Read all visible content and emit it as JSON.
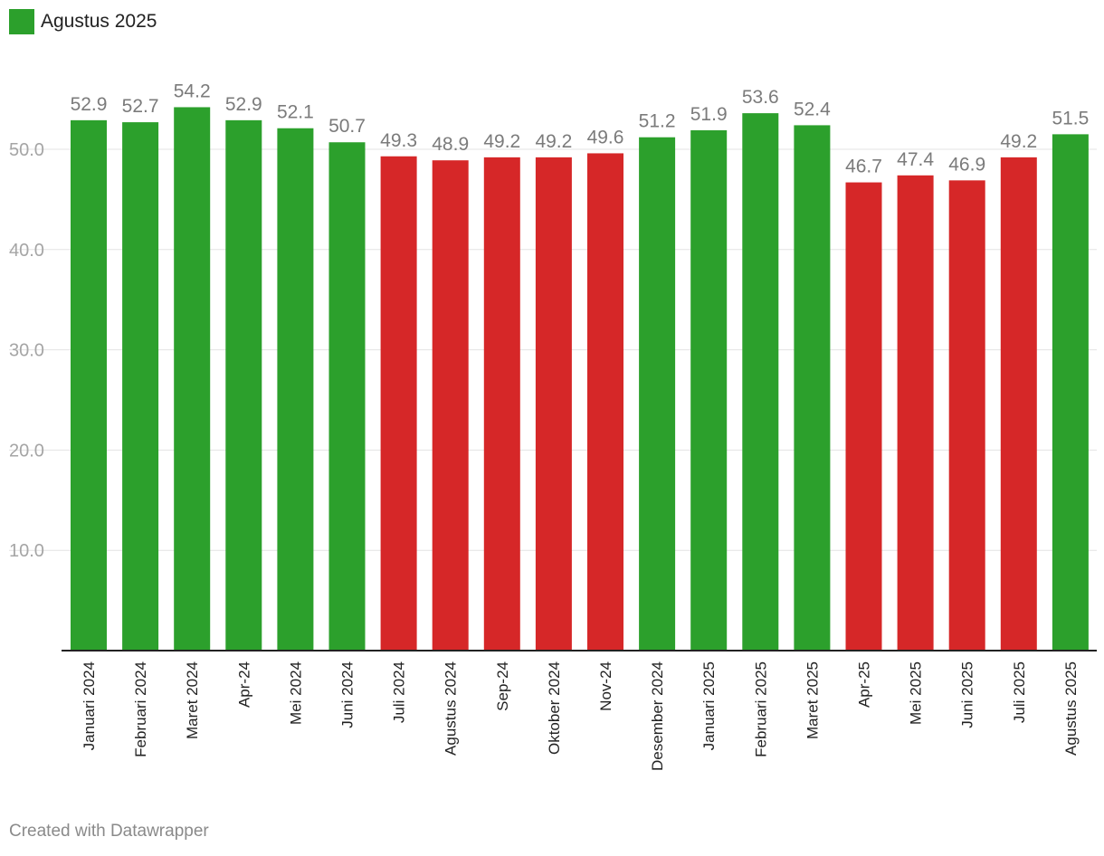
{
  "legend": {
    "label": "Agustus 2025",
    "color": "#2ca02c"
  },
  "credit": "Created with Datawrapper",
  "colors": {
    "above": "#2ca02c",
    "below": "#d62728",
    "grid": "#e3e3e3",
    "axis": "#222222"
  },
  "chart_data": {
    "type": "bar",
    "categories": [
      "Januari 2024",
      "Februari 2024",
      "Maret 2024",
      "Apr-24",
      "Mei 2024",
      "Juni 2024",
      "Juli 2024",
      "Agustus 2024",
      "Sep-24",
      "Oktober 2024",
      "Nov-24",
      "Desember 2024",
      "Januari 2025",
      "Februari 2025",
      "Maret 2025",
      "Apr-25",
      "Mei 2025",
      "Juni 2025",
      "Juli 2025",
      "Agustus 2025"
    ],
    "values": [
      52.9,
      52.7,
      54.2,
      52.9,
      52.1,
      50.7,
      49.3,
      48.9,
      49.2,
      49.2,
      49.6,
      51.2,
      51.9,
      53.6,
      52.4,
      46.7,
      47.4,
      46.9,
      49.2,
      51.5
    ],
    "value_labels": [
      "52.9",
      "52.7",
      "54.2",
      "52.9",
      "52.1",
      "50.7",
      "49.3",
      "48.9",
      "49.2",
      "49.2",
      "49.6",
      "51.2",
      "51.9",
      "53.6",
      "52.4",
      "46.7",
      "47.4",
      "46.9",
      "49.2",
      "51.5"
    ],
    "yticks": [
      10,
      20,
      30,
      40,
      50
    ],
    "ytick_labels": [
      "10.0",
      "20.0",
      "30.0",
      "40.0",
      "50.0"
    ],
    "ylim": [
      0,
      56
    ],
    "threshold": 50,
    "grid": true,
    "legend_position": "top-left"
  }
}
